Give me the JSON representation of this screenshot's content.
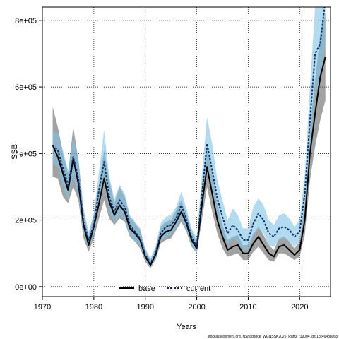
{
  "chart_data": {
    "type": "line",
    "title": "",
    "xlabel": "Years",
    "ylabel": "SSB",
    "xlim": [
      1970,
      2026
    ],
    "ylim": [
      -30000,
      840000
    ],
    "xticks": [
      1970,
      1980,
      1990,
      2000,
      2010,
      2020
    ],
    "yticks": [
      0,
      200000,
      400000,
      600000,
      800000
    ],
    "ytick_labels": [
      "0e+00",
      "2e+05",
      "4e+05",
      "6e+05",
      "8e+05"
    ],
    "grid": true,
    "legend_position": "bottom-center",
    "credit": "stockassessment.org, NShaddock_WGNSSK2025_Run3, r19004, git:1cc464b8068",
    "x": [
      1972,
      1973,
      1974,
      1975,
      1976,
      1977,
      1978,
      1979,
      1980,
      1981,
      1982,
      1983,
      1984,
      1985,
      1986,
      1987,
      1988,
      1989,
      1990,
      1991,
      1992,
      1993,
      1994,
      1995,
      1996,
      1997,
      1998,
      1999,
      2000,
      2001,
      2002,
      2003,
      2004,
      2005,
      2006,
      2007,
      2008,
      2009,
      2010,
      2011,
      2012,
      2013,
      2014,
      2015,
      2016,
      2017,
      2018,
      2019,
      2020,
      2021,
      2022,
      2023,
      2024,
      2025
    ],
    "series": [
      {
        "name": "base",
        "color": "#000000",
        "band_color": "#555555",
        "values": [
          425000,
          390000,
          340000,
          290000,
          385000,
          310000,
          185000,
          125000,
          180000,
          250000,
          325000,
          255000,
          215000,
          245000,
          225000,
          175000,
          160000,
          140000,
          90000,
          65000,
          95000,
          150000,
          165000,
          170000,
          195000,
          225000,
          190000,
          140000,
          115000,
          245000,
          360000,
          280000,
          200000,
          150000,
          110000,
          120000,
          125000,
          100000,
          100000,
          130000,
          150000,
          125000,
          100000,
          90000,
          120000,
          125000,
          110000,
          95000,
          110000,
          200000,
          400000,
          520000,
          630000,
          690000
        ],
        "lower": [
          330000,
          325000,
          270000,
          250000,
          300000,
          260000,
          145000,
          105000,
          145000,
          205000,
          260000,
          205000,
          185000,
          205000,
          195000,
          150000,
          135000,
          115000,
          75000,
          55000,
          80000,
          130000,
          140000,
          145000,
          170000,
          195000,
          165000,
          120000,
          100000,
          200000,
          300000,
          225000,
          160000,
          115000,
          90000,
          95000,
          100000,
          80000,
          80000,
          105000,
          120000,
          100000,
          80000,
          75000,
          100000,
          100000,
          90000,
          80000,
          90000,
          155000,
          320000,
          420000,
          500000,
          560000
        ],
        "upper": [
          540000,
          480000,
          400000,
          340000,
          480000,
          380000,
          230000,
          150000,
          220000,
          310000,
          410000,
          320000,
          250000,
          300000,
          270000,
          210000,
          190000,
          170000,
          110000,
          80000,
          115000,
          180000,
          195000,
          200000,
          230000,
          260000,
          220000,
          165000,
          135000,
          300000,
          430000,
          340000,
          250000,
          185000,
          140000,
          150000,
          155000,
          125000,
          125000,
          160000,
          180000,
          155000,
          125000,
          110000,
          145000,
          150000,
          135000,
          115000,
          135000,
          255000,
          480000,
          620000,
          760000,
          820000
        ]
      },
      {
        "name": "current",
        "color": "#0b2a66",
        "band_color": "#7ec3e6",
        "values": [
          425000,
          410000,
          355000,
          305000,
          390000,
          325000,
          195000,
          140000,
          185000,
          290000,
          375000,
          270000,
          225000,
          260000,
          240000,
          185000,
          165000,
          145000,
          95000,
          70000,
          100000,
          160000,
          180000,
          185000,
          205000,
          245000,
          200000,
          150000,
          120000,
          275000,
          430000,
          350000,
          265000,
          210000,
          160000,
          185000,
          170000,
          140000,
          140000,
          190000,
          220000,
          200000,
          160000,
          150000,
          175000,
          180000,
          170000,
          150000,
          165000,
          280000,
          500000,
          700000,
          730000,
          860000
        ],
        "lower": [
          370000,
          360000,
          300000,
          260000,
          330000,
          275000,
          160000,
          115000,
          155000,
          240000,
          310000,
          225000,
          190000,
          215000,
          200000,
          155000,
          135000,
          120000,
          80000,
          58000,
          85000,
          135000,
          150000,
          155000,
          175000,
          205000,
          170000,
          125000,
          100000,
          225000,
          350000,
          280000,
          210000,
          165000,
          125000,
          145000,
          135000,
          110000,
          110000,
          150000,
          175000,
          160000,
          125000,
          120000,
          140000,
          145000,
          135000,
          120000,
          135000,
          230000,
          410000,
          580000,
          620000,
          730000
        ],
        "upper": [
          470000,
          460000,
          410000,
          350000,
          450000,
          385000,
          235000,
          165000,
          220000,
          345000,
          470000,
          330000,
          265000,
          305000,
          280000,
          215000,
          195000,
          175000,
          115000,
          85000,
          120000,
          190000,
          210000,
          215000,
          240000,
          285000,
          235000,
          175000,
          145000,
          335000,
          510000,
          430000,
          320000,
          260000,
          200000,
          235000,
          215000,
          175000,
          175000,
          240000,
          265000,
          245000,
          200000,
          185000,
          215000,
          220000,
          205000,
          180000,
          200000,
          340000,
          600000,
          840000,
          860000,
          900000
        ]
      }
    ]
  }
}
